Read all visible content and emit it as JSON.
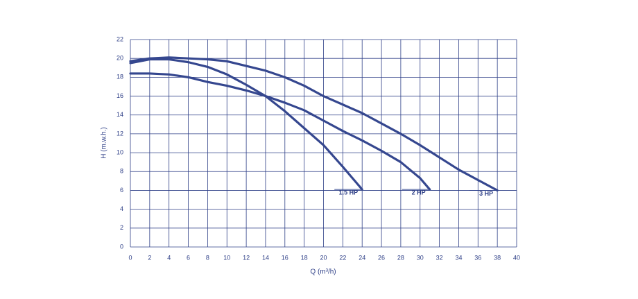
{
  "chart_data": {
    "type": "line",
    "x_label": "Q (m³/h)",
    "y_label": "H (m.w.h.)",
    "xlim": [
      0,
      40
    ],
    "xticks": [
      0,
      2,
      4,
      6,
      8,
      10,
      12,
      14,
      16,
      18,
      20,
      22,
      24,
      26,
      28,
      30,
      32,
      34,
      36,
      38,
      40
    ],
    "ylim": [
      0,
      22
    ],
    "yticks": [
      0,
      2,
      4,
      6,
      8,
      10,
      12,
      14,
      16,
      18,
      20,
      22
    ],
    "grid": true,
    "color": "#35478f",
    "series": [
      {
        "name": "1.5 HP",
        "color": "#35478f",
        "x": [
          0,
          2,
          4,
          6,
          8,
          10,
          12,
          14,
          16,
          18,
          20,
          22,
          24
        ],
        "values": [
          19.5,
          19.9,
          19.9,
          19.6,
          19.1,
          18.3,
          17.2,
          16,
          14.4,
          12.6,
          10.8,
          8.5,
          6.1
        ]
      },
      {
        "name": "2 HP",
        "color": "#35478f",
        "x": [
          0,
          2,
          4,
          6,
          8,
          10,
          12,
          14,
          16,
          18,
          20,
          22,
          24,
          26,
          28,
          30,
          31
        ],
        "values": [
          18.4,
          18.4,
          18.3,
          18,
          17.5,
          17.1,
          16.6,
          16,
          15.3,
          14.5,
          13.4,
          12.3,
          11.3,
          10.2,
          9,
          7.3,
          6.1
        ]
      },
      {
        "name": "3 HP",
        "color": "#35478f",
        "x": [
          0,
          2,
          4,
          6,
          8,
          10,
          12,
          14,
          16,
          18,
          20,
          22,
          24,
          26,
          28,
          30,
          32,
          34,
          36,
          38
        ],
        "values": [
          19.7,
          20,
          20.1,
          20,
          19.9,
          19.7,
          19.2,
          18.7,
          18,
          17.1,
          16,
          15.1,
          14.2,
          13.1,
          12,
          10.8,
          9.5,
          8.2,
          7.1,
          6
        ]
      }
    ]
  }
}
